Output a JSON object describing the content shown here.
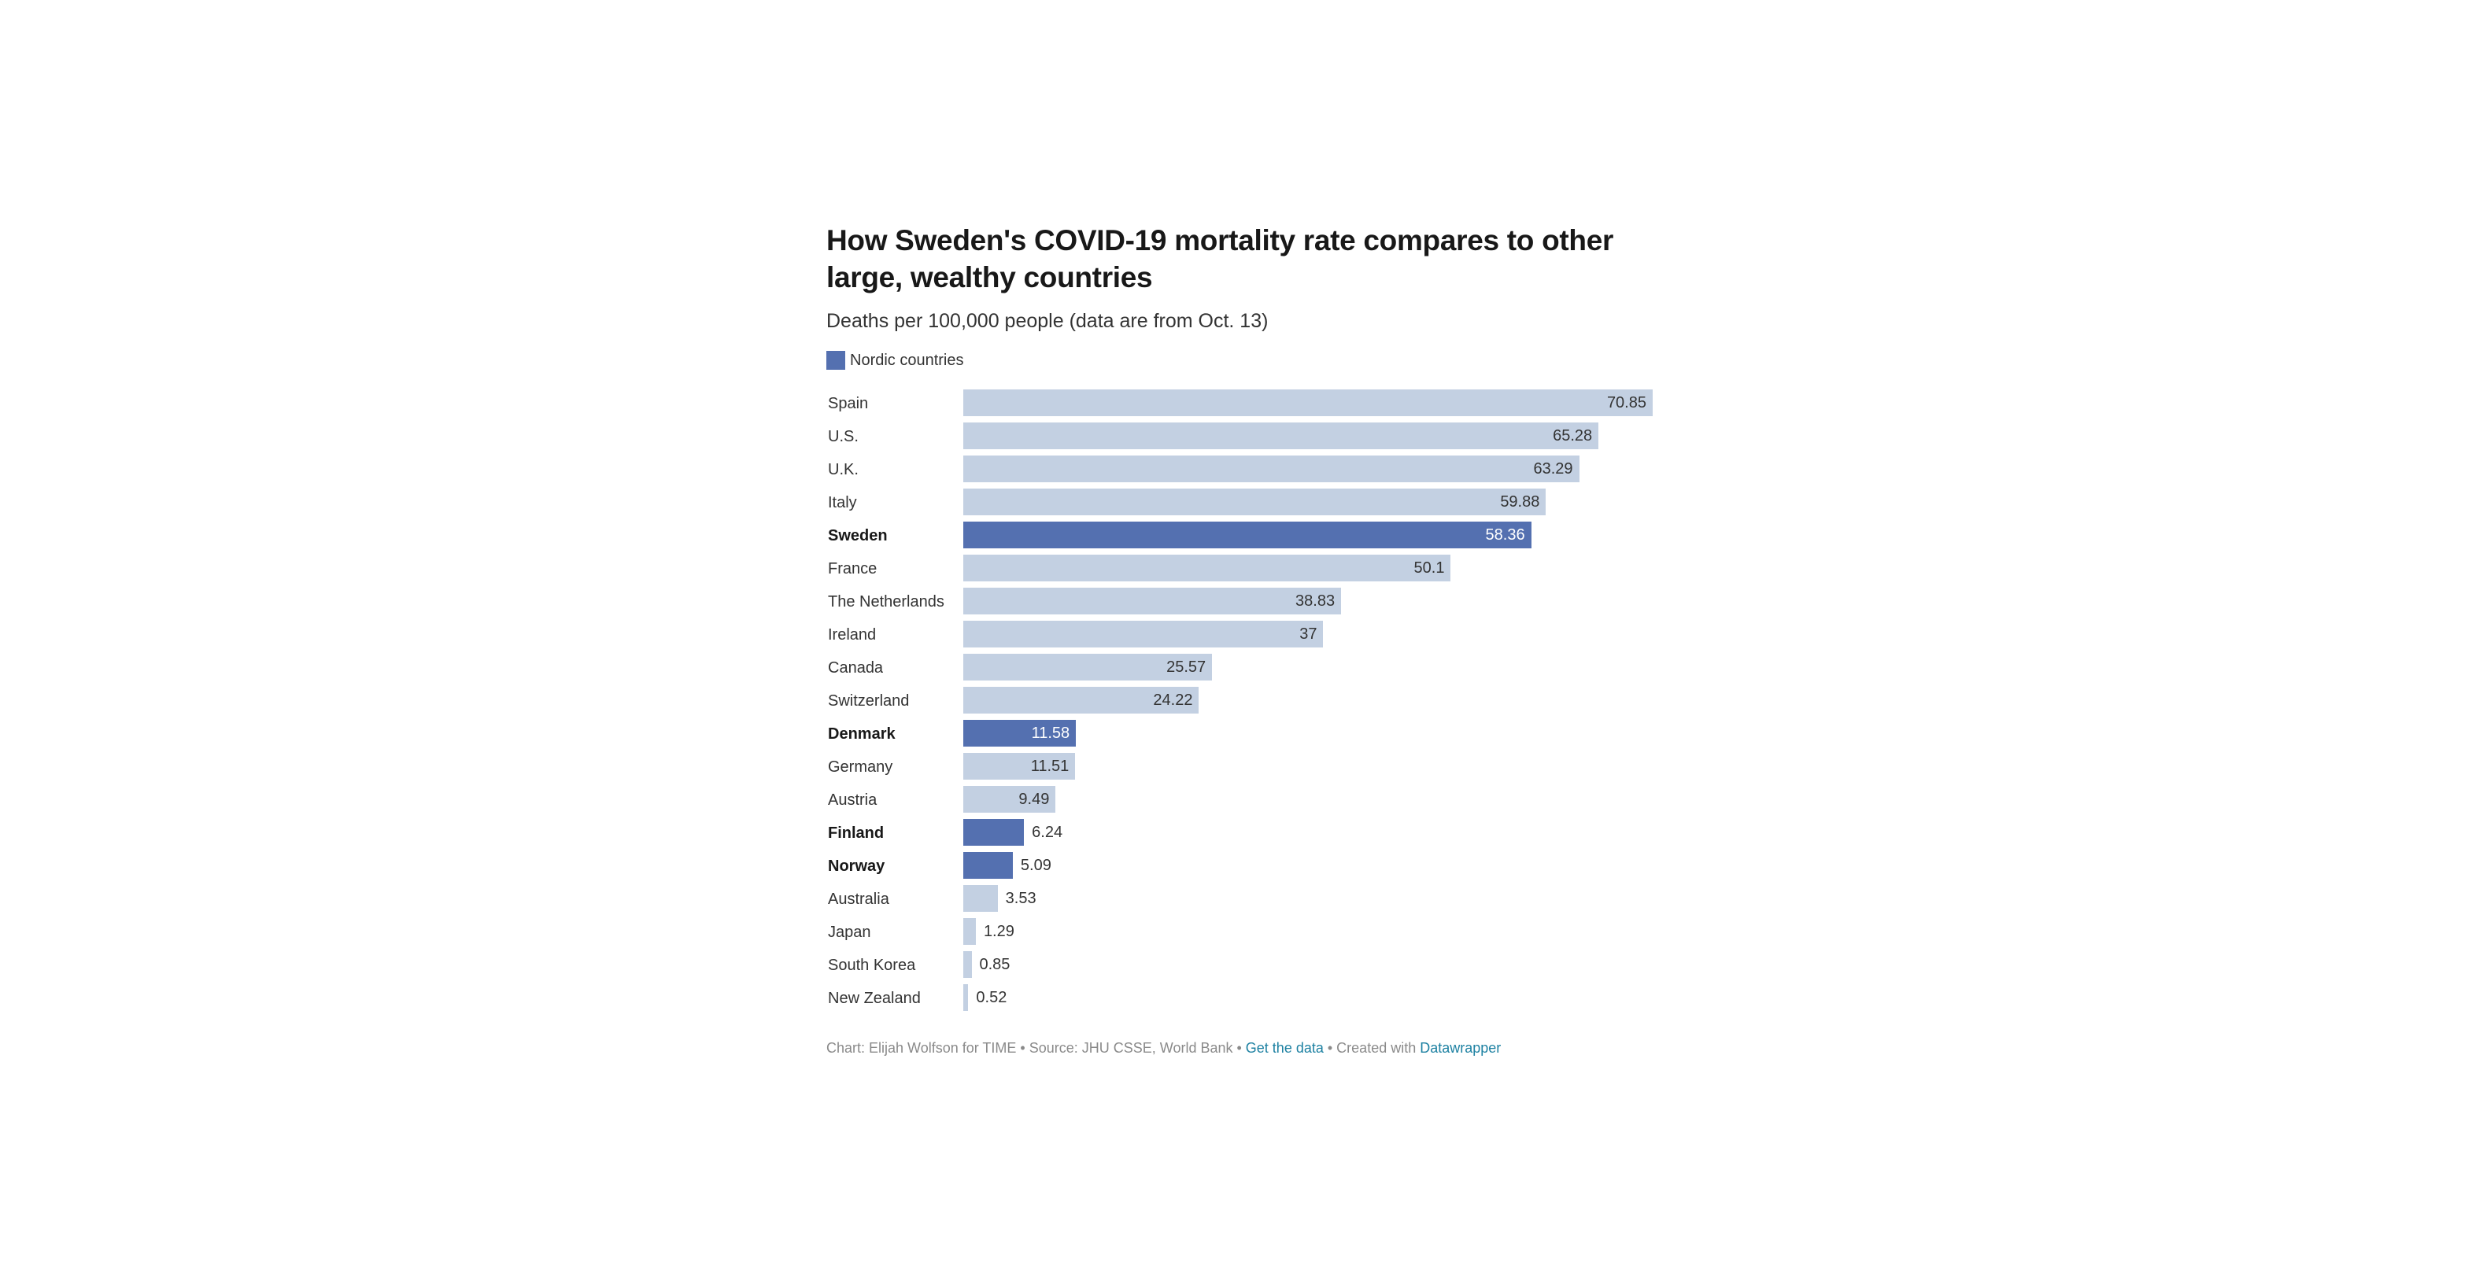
{
  "title": "How Sweden's COVID-19 mortality rate compares to other large, wealthy countries",
  "subtitle": "Deaths per 100,000 people (data are from Oct. 13)",
  "legend": {
    "label": "Nordic countries",
    "color": "#5470b0"
  },
  "colors": {
    "nordic": "#5470b0",
    "other": "#c3d0e2",
    "label_on_dark": "#ffffff",
    "label_on_light": "#333333"
  },
  "footer": {
    "credit": "Chart: Elijah Wolfson for TIME • Source: JHU CSSE, World Bank • ",
    "get_data": "Get the data",
    "created": " • Created with ",
    "tool": "Datawrapper"
  },
  "chart_data": {
    "type": "bar",
    "orientation": "horizontal",
    "title": "How Sweden's COVID-19 mortality rate compares to other large, wealthy countries",
    "subtitle": "Deaths per 100,000 people (data are from Oct. 13)",
    "xlim": [
      0,
      70.85
    ],
    "categories": [
      "Spain",
      "U.S.",
      "U.K.",
      "Italy",
      "Sweden",
      "France",
      "The Netherlands",
      "Ireland",
      "Canada",
      "Switzerland",
      "Denmark",
      "Germany",
      "Austria",
      "Finland",
      "Norway",
      "Australia",
      "Japan",
      "South Korea",
      "New Zealand"
    ],
    "values": [
      70.85,
      65.28,
      63.29,
      59.88,
      58.36,
      50.1,
      38.83,
      37,
      25.57,
      24.22,
      11.58,
      11.51,
      9.49,
      6.24,
      5.09,
      3.53,
      1.29,
      0.85,
      0.52
    ],
    "value_labels": [
      "70.85",
      "65.28",
      "63.29",
      "59.88",
      "58.36",
      "50.1",
      "38.83",
      "37",
      "25.57",
      "24.22",
      "11.58",
      "11.51",
      "9.49",
      "6.24",
      "5.09",
      "3.53",
      "1.29",
      "0.85",
      "0.52"
    ],
    "nordic": [
      false,
      false,
      false,
      false,
      true,
      false,
      false,
      false,
      false,
      false,
      true,
      false,
      false,
      true,
      true,
      false,
      false,
      false,
      false
    ],
    "legend": "top-left",
    "grid": false
  }
}
